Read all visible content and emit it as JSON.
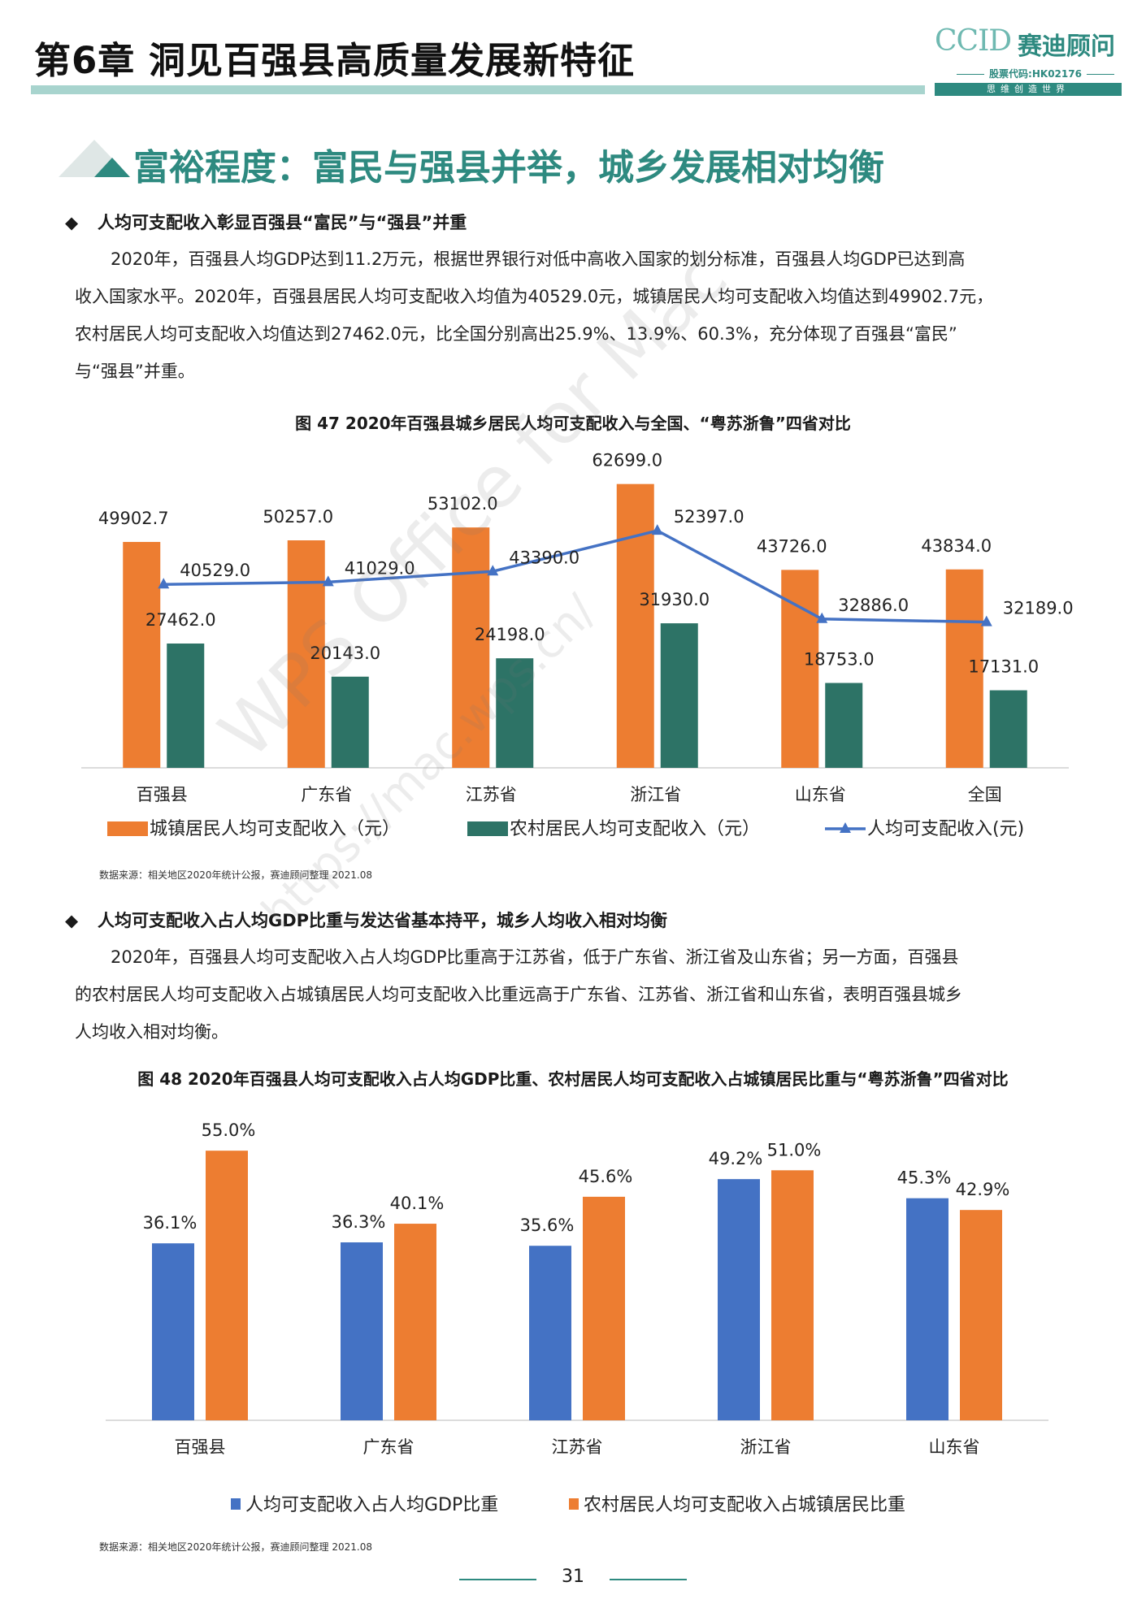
{
  "header": {
    "chapter_title": "第6章  洞见百强县高质量发展新特征",
    "logo": {
      "ccid": "CCID",
      "name": "赛迪顾问",
      "stock": "股票代码:HK02176",
      "slogan": "思维创造世界"
    }
  },
  "section_title": "富裕程度：富民与强县并举，城乡发展相对均衡",
  "bullet1": "人均可支配收入彰显百强县“富民”与“强县”并重",
  "para1": [
    "2020年，百强县人均GDP达到11.2万元，根据世界银行对低中高收入国家的划分标准，百强县人均GDP已达到高",
    "收入国家水平。2020年，百强县居民人均可支配收入均值为40529.0元，城镇居民人均可支配收入均值达到49902.7元，",
    "农村居民人均可支配收入均值达到27462.0元，比全国分别高出25.9%、13.9%、60.3%，充分体现了百强县“富民”",
    "与“强县”并重。"
  ],
  "fig47_title": "图 47  2020年百强县城乡居民人均可支配收入与全国、“粤苏浙鲁”四省对比",
  "fig48_title": "图 48  2020年百强县人均可支配收入占人均GDP比重、农村居民人均可支配收入占城镇居民比重与“粤苏浙鲁”四省对比",
  "source1": "数据来源：相关地区2020年统计公报，赛迪顾问整理  2021.08",
  "source2": "数据来源：相关地区2020年统计公报，赛迪顾问整理  2021.08",
  "bullet2": "人均可支配收入占人均GDP比重与发达省基本持平，城乡人均收入相对均衡",
  "para2": [
    "2020年，百强县人均可支配收入占人均GDP比重高于江苏省，低于广东省、浙江省及山东省；另一方面，百强县",
    "的农村居民人均可支配收入占城镇居民人均可支配收入比重远高于广东省、江苏省、浙江省和山东省，表明百强县城乡",
    "人均收入相对均衡。"
  ],
  "watermark": "WPS Office for Mac",
  "watermark2": "https://mac.wps.cn/",
  "page_number": "31",
  "colors": {
    "orange": "#ed7d31",
    "teal": "#2d7366",
    "blue": "#4472c4",
    "accent": "#2e8a80"
  },
  "chart_data": [
    {
      "type": "bar",
      "categories": [
        "百强县",
        "广东省",
        "江苏省",
        "浙江省",
        "山东省",
        "全国"
      ],
      "series": [
        {
          "name": "城镇居民人均可支配收入（元）",
          "kind": "bar",
          "values": [
            49902.7,
            50257.0,
            53102.0,
            62699.0,
            43726.0,
            43834.0
          ],
          "labels": [
            "49902.7",
            "50257.0",
            "53102.0",
            "62699.0",
            "43726.0",
            "43834.0"
          ]
        },
        {
          "name": "农村居民人均可支配收入（元）",
          "kind": "bar",
          "values": [
            27462.0,
            20143.0,
            24198.0,
            31930.0,
            18753.0,
            17131.0
          ],
          "labels": [
            "27462.0",
            "20143.0",
            "24198.0",
            "31930.0",
            "18753.0",
            "17131.0"
          ]
        },
        {
          "name": "人均可支配收入(元)",
          "kind": "line",
          "values": [
            40529.0,
            41029.0,
            43390.0,
            52397.0,
            32886.0,
            32189.0
          ],
          "labels": [
            "40529.0",
            "41029.0",
            "43390.0",
            "52397.0",
            "32886.0",
            "32189.0"
          ]
        }
      ],
      "ylim": [
        0,
        70000
      ],
      "grid": false,
      "legend": "bottom"
    },
    {
      "type": "bar",
      "categories": [
        "百强县",
        "广东省",
        "江苏省",
        "浙江省",
        "山东省"
      ],
      "series": [
        {
          "name": "人均可支配收入占人均GDP比重",
          "values": [
            36.1,
            36.3,
            35.6,
            49.2,
            45.3
          ],
          "labels": [
            "36.1%",
            "36.3%",
            "35.6%",
            "49.2%",
            "45.3%"
          ]
        },
        {
          "name": "农村居民人均可支配收入占城镇居民比重",
          "values": [
            55.0,
            40.1,
            45.6,
            51.0,
            42.9
          ],
          "labels": [
            "55.0%",
            "40.1%",
            "45.6%",
            "51.0%",
            "42.9%"
          ]
        }
      ],
      "ylim": [
        0,
        60
      ],
      "grid": false,
      "legend": "bottom"
    }
  ]
}
